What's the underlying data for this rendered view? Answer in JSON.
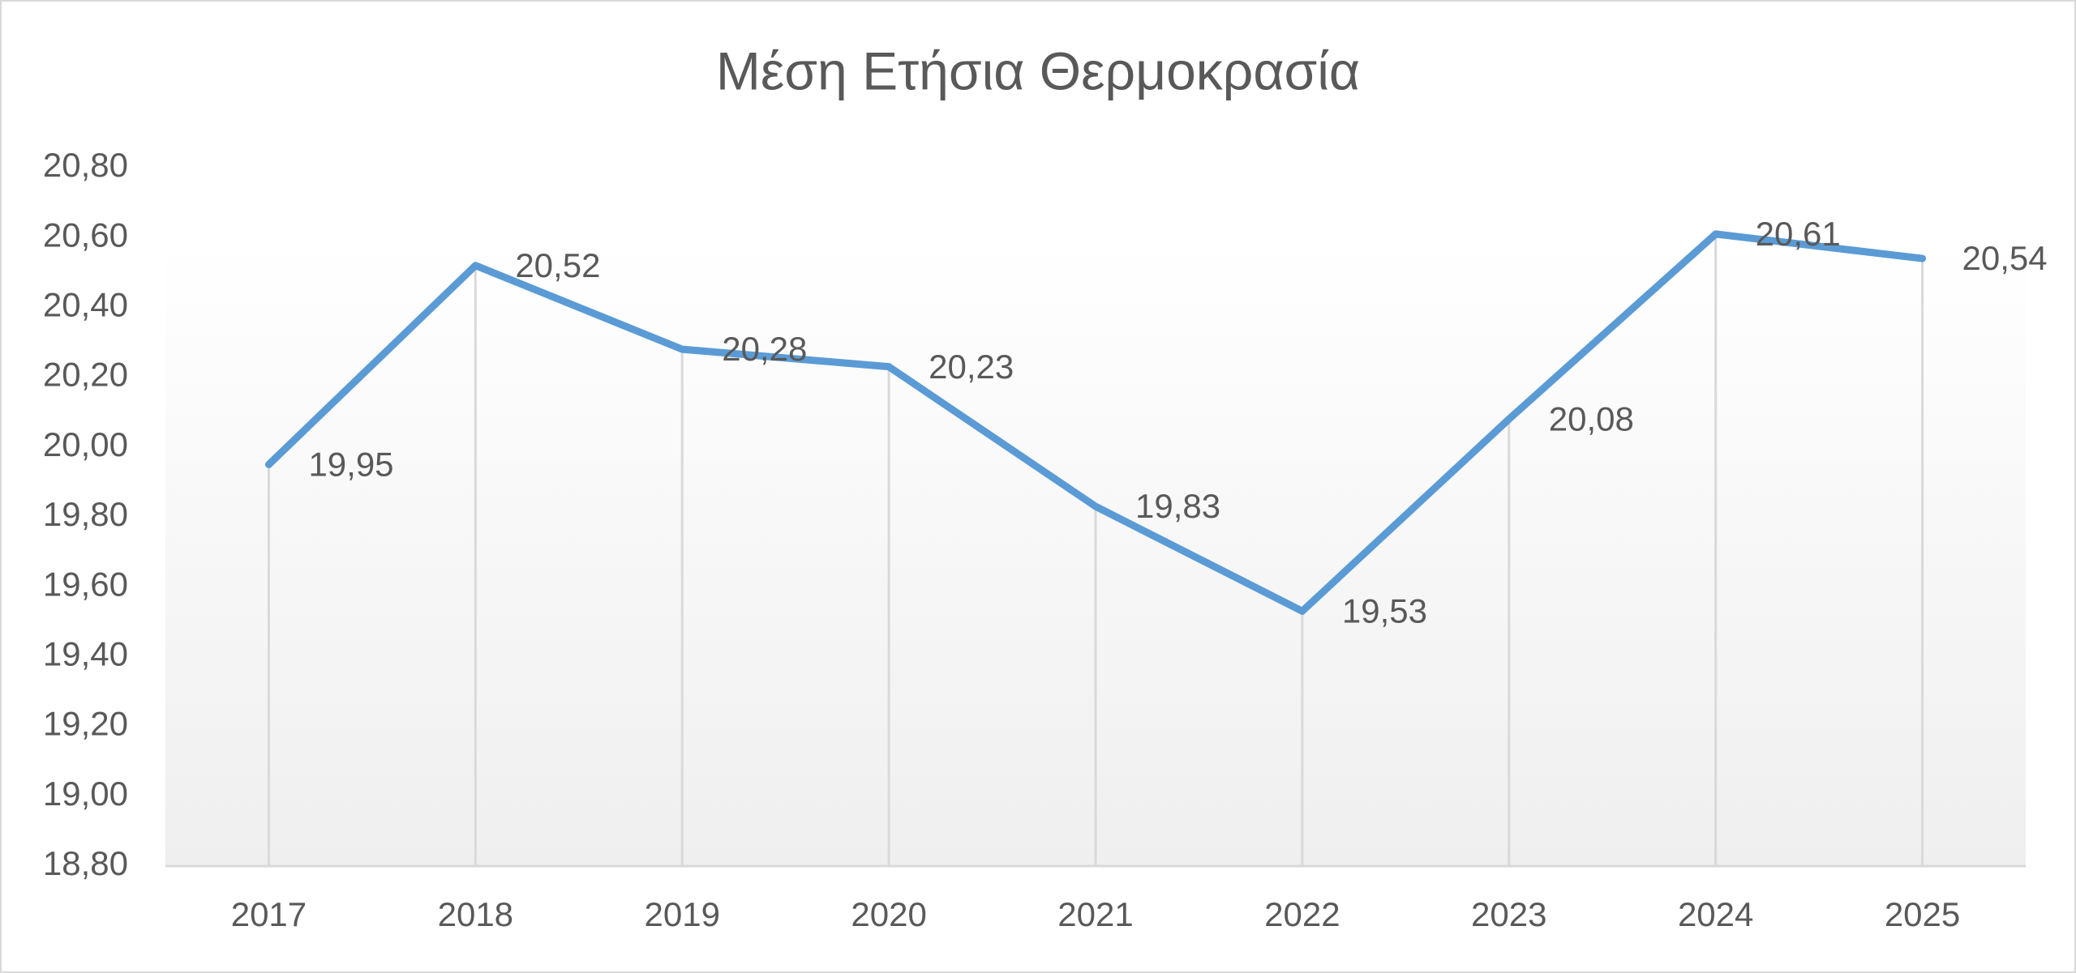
{
  "chart_data": {
    "type": "line",
    "title": "Μέση Ετήσια Θερμοκρασία",
    "categories": [
      "2017",
      "2018",
      "2019",
      "2020",
      "2021",
      "2022",
      "2023",
      "2024",
      "2025"
    ],
    "series": [
      {
        "name": "Μέση Ετήσια Θερμοκρασία",
        "color": "#5b9bd5",
        "values": [
          19.95,
          20.52,
          20.28,
          20.23,
          19.83,
          19.53,
          20.08,
          20.61,
          20.54
        ],
        "value_labels": [
          "19,95",
          "20,52",
          "20,28",
          "20,23",
          "19,83",
          "19,53",
          "20,08",
          "20,61",
          "20,54"
        ]
      }
    ],
    "ylim": [
      18.8,
      20.8
    ],
    "yticks": [
      {
        "value": 18.8,
        "label": "18,80"
      },
      {
        "value": 19.0,
        "label": "19,00"
      },
      {
        "value": 19.2,
        "label": "19,20"
      },
      {
        "value": 19.4,
        "label": "19,40"
      },
      {
        "value": 19.6,
        "label": "19,60"
      },
      {
        "value": 19.8,
        "label": "19,80"
      },
      {
        "value": 20.0,
        "label": "20,00"
      },
      {
        "value": 20.2,
        "label": "20,20"
      },
      {
        "value": 20.4,
        "label": "20,40"
      },
      {
        "value": 20.6,
        "label": "20,60"
      },
      {
        "value": 20.8,
        "label": "20,80"
      }
    ],
    "drop_lines": true
  }
}
